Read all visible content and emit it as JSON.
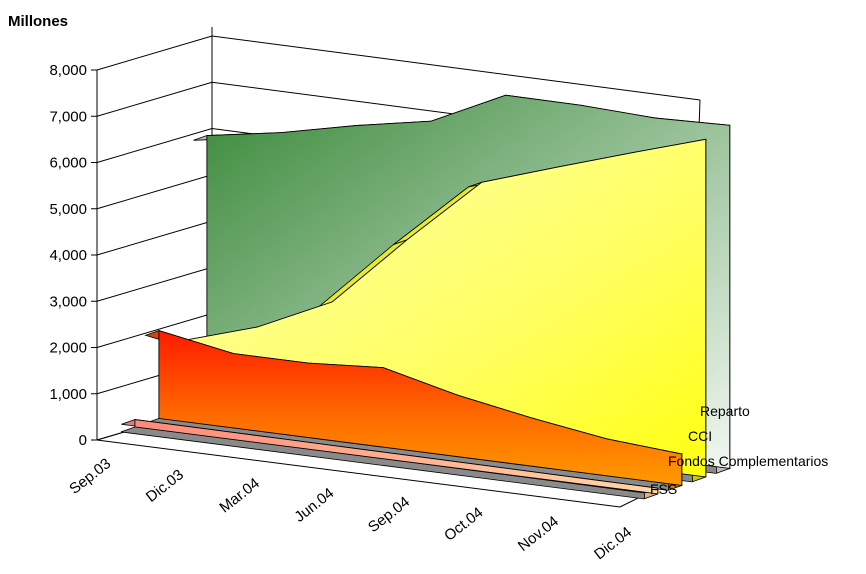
{
  "chart_data": {
    "type": "area",
    "subtype": "3d-area",
    "ylabel": "Millones",
    "ylim": [
      0,
      8000
    ],
    "yticks": [
      "0",
      "1,000",
      "2,000",
      "3,000",
      "4,000",
      "5,000",
      "6,000",
      "7,000",
      "8,000"
    ],
    "grid": true,
    "categories": [
      "Sep.03",
      "Dic.03",
      "Mar.04",
      "Jun.04",
      "Sep.04",
      "Oct.04",
      "Nov.04",
      "Dic.04"
    ],
    "series": [
      {
        "name": "Reparto",
        "color": "#3b8a3b",
        "values": [
          5750,
          6020,
          6380,
          6680,
          7450,
          7440,
          7370,
          7420
        ]
      },
      {
        "name": "CCI",
        "color": "#ffff40",
        "values": [
          1500,
          2000,
          2750,
          4300,
          5750,
          6280,
          6800,
          7300
        ]
      },
      {
        "name": "Fondos Complementarios",
        "color": "#ff5a00",
        "values": [
          1900,
          1610,
          1610,
          1720,
          1330,
          1040,
          800,
          680
        ]
      },
      {
        "name": "FSS",
        "color": "#ffb090",
        "values": [
          160,
          155,
          150,
          145,
          140,
          135,
          130,
          125
        ]
      }
    ]
  }
}
